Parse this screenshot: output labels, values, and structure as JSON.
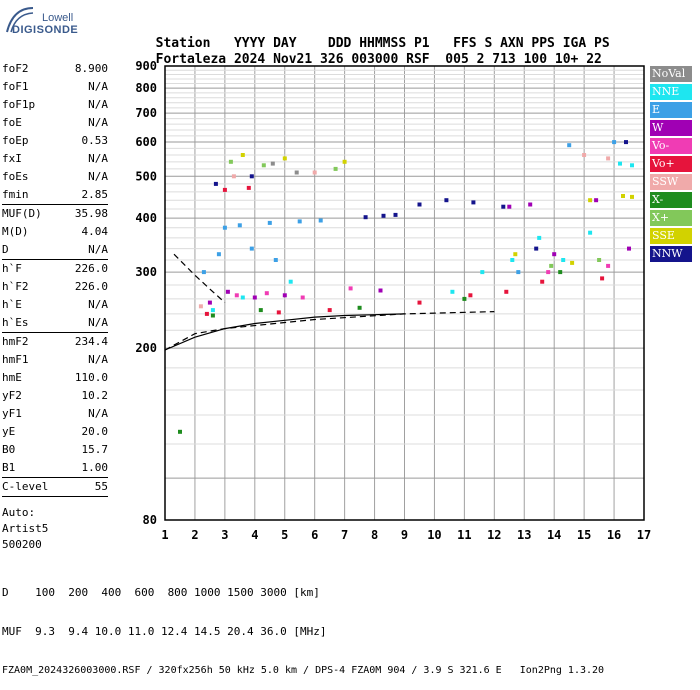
{
  "logo": {
    "top": "Lowell",
    "bottom": "DIGISONDE"
  },
  "header": {
    "labels": [
      "Station",
      "YYYY",
      "DAY",
      "DDD",
      "HHMMSS",
      "P1",
      "FFS",
      "S",
      "AXN",
      "PPS",
      "IGA",
      "PS"
    ],
    "values": [
      "Fortaleza",
      "2024",
      "Nov21",
      "326",
      "003000",
      "RSF",
      "005",
      "2",
      "713",
      "100",
      "10+",
      "22"
    ]
  },
  "sidebar": {
    "groups": [
      [
        {
          "label": "foF2",
          "value": "8.900"
        },
        {
          "label": "foF1",
          "value": "N/A"
        },
        {
          "label": "foF1p",
          "value": "N/A"
        },
        {
          "label": "foE",
          "value": "N/A"
        },
        {
          "label": "foEp",
          "value": "0.53"
        },
        {
          "label": "fxI",
          "value": "N/A"
        },
        {
          "label": "foEs",
          "value": "N/A"
        },
        {
          "label": "fmin",
          "value": "2.85"
        }
      ],
      [
        {
          "label": "MUF(D)",
          "value": "35.98"
        },
        {
          "label": "M(D)",
          "value": "4.04"
        },
        {
          "label": "D",
          "value": "N/A"
        }
      ],
      [
        {
          "label": "h`F",
          "value": "226.0"
        },
        {
          "label": "h`F2",
          "value": "226.0"
        },
        {
          "label": "h`E",
          "value": "N/A"
        },
        {
          "label": "h`Es",
          "value": "N/A"
        }
      ],
      [
        {
          "label": "hmF2",
          "value": "234.4"
        },
        {
          "label": "hmF1",
          "value": "N/A"
        },
        {
          "label": "hmE",
          "value": "110.0"
        },
        {
          "label": "yF2",
          "value": "10.2"
        },
        {
          "label": "yF1",
          "value": "N/A"
        },
        {
          "label": "yE",
          "value": "20.0"
        },
        {
          "label": "B0",
          "value": "15.7"
        },
        {
          "label": "B1",
          "value": "1.00"
        }
      ],
      [
        {
          "label": "C-level",
          "value": "55"
        }
      ]
    ],
    "auto": [
      "Auto:",
      "Artist5",
      "500200"
    ]
  },
  "legend": [
    {
      "label": "NoVal",
      "color": "#8c8c8c"
    },
    {
      "label": "NNE",
      "color": "#1ee6f0"
    },
    {
      "label": "E",
      "color": "#3ca0e6"
    },
    {
      "label": "W",
      "color": "#a000b4"
    },
    {
      "label": "Vo-",
      "color": "#f03cb4"
    },
    {
      "label": "Vo+",
      "color": "#e6143c"
    },
    {
      "label": "SSW",
      "color": "#f0aaaa"
    },
    {
      "label": "X-",
      "color": "#1e8c1e"
    },
    {
      "label": "X+",
      "color": "#82c85a"
    },
    {
      "label": "SSE",
      "color": "#d2d200"
    },
    {
      "label": "NNW",
      "color": "#14148c"
    }
  ],
  "chart_data": {
    "type": "scatter",
    "title": "",
    "xlabel": "",
    "ylabel": "",
    "xlim": [
      1,
      17
    ],
    "ylim": [
      80,
      900
    ],
    "y_scale": "log",
    "x_ticks": [
      1,
      2,
      3,
      4,
      5,
      6,
      7,
      8,
      9,
      10,
      11,
      12,
      13,
      14,
      15,
      16,
      17
    ],
    "y_ticks": [
      80,
      200,
      300,
      400,
      500,
      600,
      700,
      800,
      900
    ],
    "grid": true,
    "series": [
      {
        "name": "NNE",
        "color": "#1ee6f0",
        "points": [
          [
            2.6,
            245
          ],
          [
            3.6,
            262
          ],
          [
            5.2,
            285
          ],
          [
            10.6,
            270
          ],
          [
            11.6,
            300
          ],
          [
            12.6,
            320
          ],
          [
            13.5,
            360
          ],
          [
            14.3,
            320
          ],
          [
            15.2,
            370
          ],
          [
            16.2,
            535
          ],
          [
            16.6,
            530
          ]
        ]
      },
      {
        "name": "E",
        "color": "#3ca0e6",
        "points": [
          [
            2.3,
            300
          ],
          [
            3.0,
            380
          ],
          [
            3.5,
            385
          ],
          [
            4.5,
            390
          ],
          [
            5.5,
            393
          ],
          [
            6.2,
            395
          ],
          [
            2.8,
            330
          ],
          [
            3.9,
            340
          ],
          [
            4.7,
            320
          ],
          [
            12.8,
            300
          ],
          [
            14.5,
            590
          ],
          [
            16.0,
            600
          ]
        ]
      },
      {
        "name": "W",
        "color": "#a000b4",
        "points": [
          [
            2.5,
            255
          ],
          [
            3.1,
            270
          ],
          [
            4.0,
            262
          ],
          [
            5.0,
            265
          ],
          [
            8.2,
            272
          ],
          [
            12.5,
            425
          ],
          [
            13.2,
            430
          ],
          [
            14.0,
            330
          ],
          [
            15.4,
            440
          ],
          [
            16.5,
            340
          ]
        ]
      },
      {
        "name": "Vo-",
        "color": "#f03cb4",
        "points": [
          [
            3.4,
            265
          ],
          [
            4.4,
            268
          ],
          [
            5.6,
            262
          ],
          [
            7.2,
            275
          ],
          [
            13.8,
            300
          ],
          [
            15.8,
            310
          ]
        ]
      },
      {
        "name": "Vo+",
        "color": "#e6143c",
        "points": [
          [
            2.4,
            240
          ],
          [
            3.0,
            465
          ],
          [
            3.8,
            470
          ],
          [
            4.8,
            242
          ],
          [
            6.5,
            245
          ],
          [
            9.5,
            255
          ],
          [
            11.2,
            265
          ],
          [
            12.4,
            270
          ],
          [
            13.6,
            285
          ],
          [
            15.6,
            290
          ]
        ]
      },
      {
        "name": "SSW",
        "color": "#f0aaaa",
        "points": [
          [
            2.2,
            250
          ],
          [
            3.3,
            500
          ],
          [
            6.0,
            510
          ],
          [
            15.0,
            560
          ],
          [
            15.8,
            550
          ]
        ]
      },
      {
        "name": "X-",
        "color": "#1e8c1e",
        "points": [
          [
            1.5,
            128
          ],
          [
            2.6,
            238
          ],
          [
            4.2,
            245
          ],
          [
            7.5,
            248
          ],
          [
            11.0,
            260
          ],
          [
            14.2,
            300
          ]
        ]
      },
      {
        "name": "X+",
        "color": "#82c85a",
        "points": [
          [
            3.2,
            540
          ],
          [
            4.3,
            530
          ],
          [
            6.7,
            520
          ],
          [
            13.9,
            310
          ],
          [
            15.5,
            320
          ]
        ]
      },
      {
        "name": "SSE",
        "color": "#d2d200",
        "points": [
          [
            3.6,
            560
          ],
          [
            5.0,
            550
          ],
          [
            7.0,
            540
          ],
          [
            12.7,
            330
          ],
          [
            14.6,
            315
          ],
          [
            15.2,
            440
          ],
          [
            16.3,
            450
          ],
          [
            16.6,
            448
          ]
        ]
      },
      {
        "name": "NNW",
        "color": "#14148c",
        "points": [
          [
            2.7,
            480
          ],
          [
            3.9,
            500
          ],
          [
            7.7,
            402
          ],
          [
            8.3,
            405
          ],
          [
            8.7,
            407
          ],
          [
            9.5,
            430
          ],
          [
            10.4,
            440
          ],
          [
            11.3,
            435
          ],
          [
            12.3,
            425
          ],
          [
            13.4,
            340
          ],
          [
            16.4,
            600
          ]
        ]
      },
      {
        "name": "NoVal",
        "color": "#8c8c8c",
        "points": [
          [
            4.6,
            535
          ],
          [
            5.4,
            510
          ]
        ]
      }
    ],
    "profile_solid": [
      [
        1,
        198
      ],
      [
        2,
        212
      ],
      [
        3,
        222
      ],
      [
        4,
        228
      ],
      [
        5,
        232
      ],
      [
        6,
        236
      ],
      [
        7,
        238
      ],
      [
        8,
        239
      ],
      [
        9,
        240
      ]
    ],
    "profile_dashed": [
      [
        1,
        198
      ],
      [
        2,
        216
      ],
      [
        3,
        222
      ],
      [
        6,
        233
      ],
      [
        9,
        240
      ],
      [
        12,
        243
      ]
    ],
    "profile_dashed_upper": [
      [
        1.3,
        330
      ],
      [
        2.0,
        295
      ],
      [
        2.6,
        270
      ],
      [
        3.0,
        255
      ]
    ]
  },
  "footer": {
    "d_line": "D    100  200  400  600  800 1000 1500 3000 [km]",
    "muf_line": "MUF  9.3  9.4 10.0 11.0 12.4 14.5 20.4 36.0 [MHz]",
    "info_line": "FZA0M_2024326003000.RSF / 320fx256h 50 kHz 5.0 km / DPS-4 FZA0M 904 / 3.9 S 321.6 E   Ion2Png 1.3.20"
  }
}
